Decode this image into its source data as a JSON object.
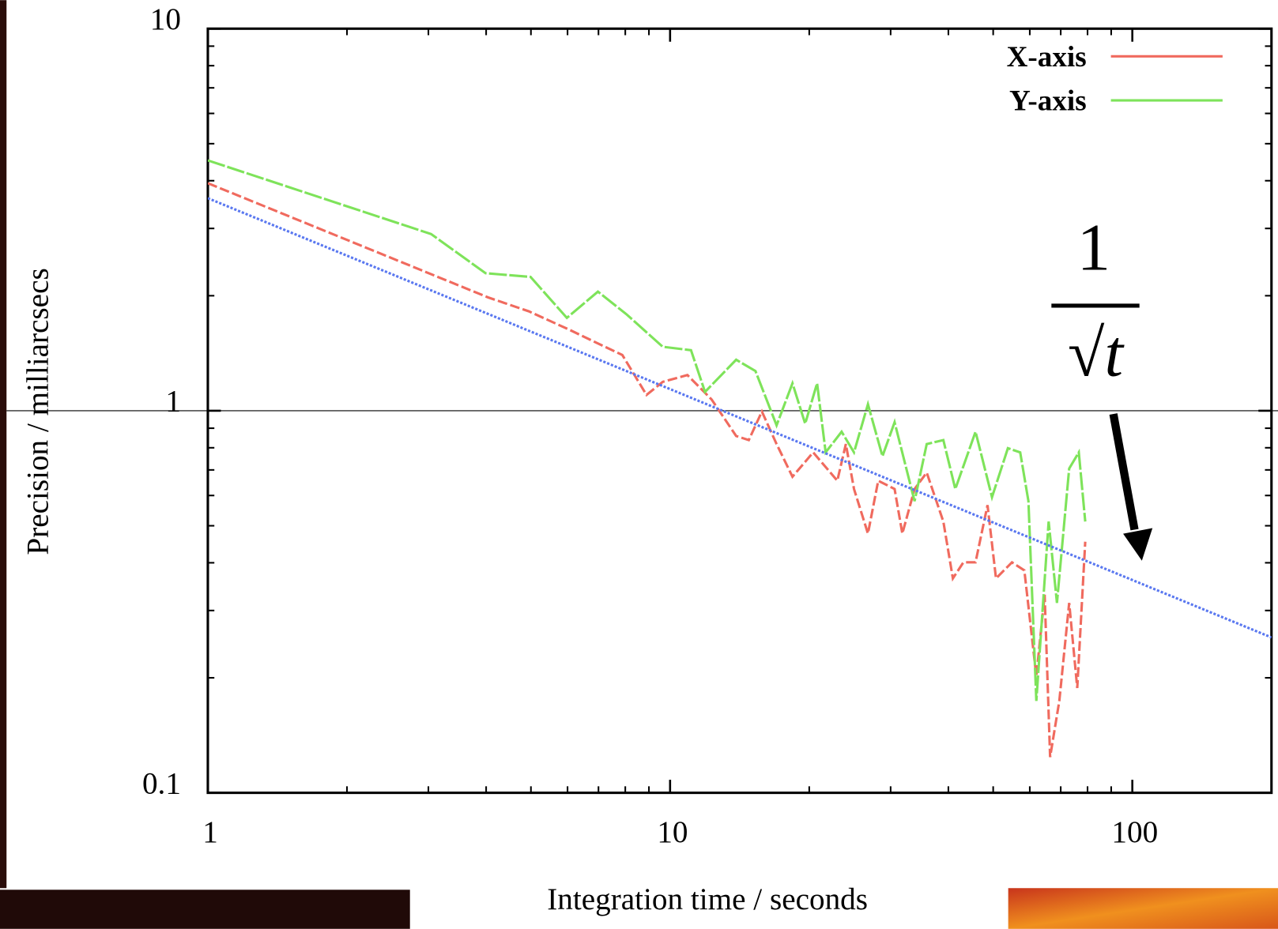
{
  "chart_data": {
    "type": "line",
    "xlabel": "Integration time / seconds",
    "ylabel": "Precision / milliarcsecs",
    "xlog": true,
    "ylog": true,
    "xlim": [
      1,
      200
    ],
    "ylim": [
      0.1,
      10
    ],
    "xticks": [
      1,
      10,
      100
    ],
    "yticks": [
      0.1,
      1,
      10
    ],
    "hlines": [
      1
    ],
    "legend": "upper right",
    "annotation_numerator": "1",
    "annotation_denominator": "√t",
    "series": [
      {
        "name": "X-axis",
        "color": "#f06a5e",
        "dash": "12 4",
        "x": [
          1,
          4.04,
          4.95,
          6.05,
          6.98,
          7.88,
          8.89,
          9.64,
          10.9,
          12.3,
          13.9,
          14.8,
          15.8,
          17.0,
          18.4,
          20.4,
          23.0,
          24.0,
          25.0,
          26.8,
          28.2,
          30.6,
          31.8,
          33.8,
          35.9,
          39.0,
          40.9,
          43.1,
          45.8,
          48.6,
          50.7,
          54.9,
          58.4,
          62.0,
          64.6,
          66.4,
          69.5,
          73.0,
          76.0,
          79.1
        ],
        "values": [
          3.94,
          1.98,
          1.82,
          1.63,
          1.5,
          1.4,
          1.1,
          1.19,
          1.24,
          1.07,
          0.859,
          0.838,
          0.995,
          0.818,
          0.672,
          0.778,
          0.656,
          0.818,
          0.624,
          0.477,
          0.656,
          0.624,
          0.477,
          0.624,
          0.689,
          0.513,
          0.364,
          0.401,
          0.401,
          0.566,
          0.364,
          0.401,
          0.382,
          0.202,
          0.33,
          0.124,
          0.174,
          0.314,
          0.188,
          0.454
        ]
      },
      {
        "name": "Y-axis",
        "color": "#7ee35a",
        "dash": "22 3",
        "x": [
          1,
          3.04,
          3.99,
          4.99,
          5.98,
          6.98,
          8.04,
          9.64,
          11.1,
          11.9,
          13.9,
          15.3,
          17.0,
          18.4,
          19.6,
          20.8,
          21.7,
          23.5,
          25.0,
          26.8,
          28.8,
          30.6,
          33.8,
          35.9,
          39.0,
          41.4,
          45.8,
          49.7,
          53.8,
          57.2,
          59.6,
          62.0,
          65.9,
          68.7,
          73.0,
          76.6,
          79.1
        ],
        "values": [
          4.52,
          2.9,
          2.29,
          2.24,
          1.75,
          2.05,
          1.79,
          1.47,
          1.44,
          1.12,
          1.36,
          1.27,
          0.916,
          1.18,
          0.925,
          1.18,
          0.778,
          0.881,
          0.778,
          1.04,
          0.76,
          0.933,
          0.58,
          0.818,
          0.838,
          0.624,
          0.881,
          0.594,
          0.798,
          0.778,
          0.58,
          0.174,
          0.513,
          0.314,
          0.706,
          0.778,
          0.513
        ]
      },
      {
        "color": "#5a78f0",
        "dash": "3 2",
        "x": [
          1,
          200
        ],
        "values": [
          3.6,
          0.255
        ]
      }
    ]
  }
}
